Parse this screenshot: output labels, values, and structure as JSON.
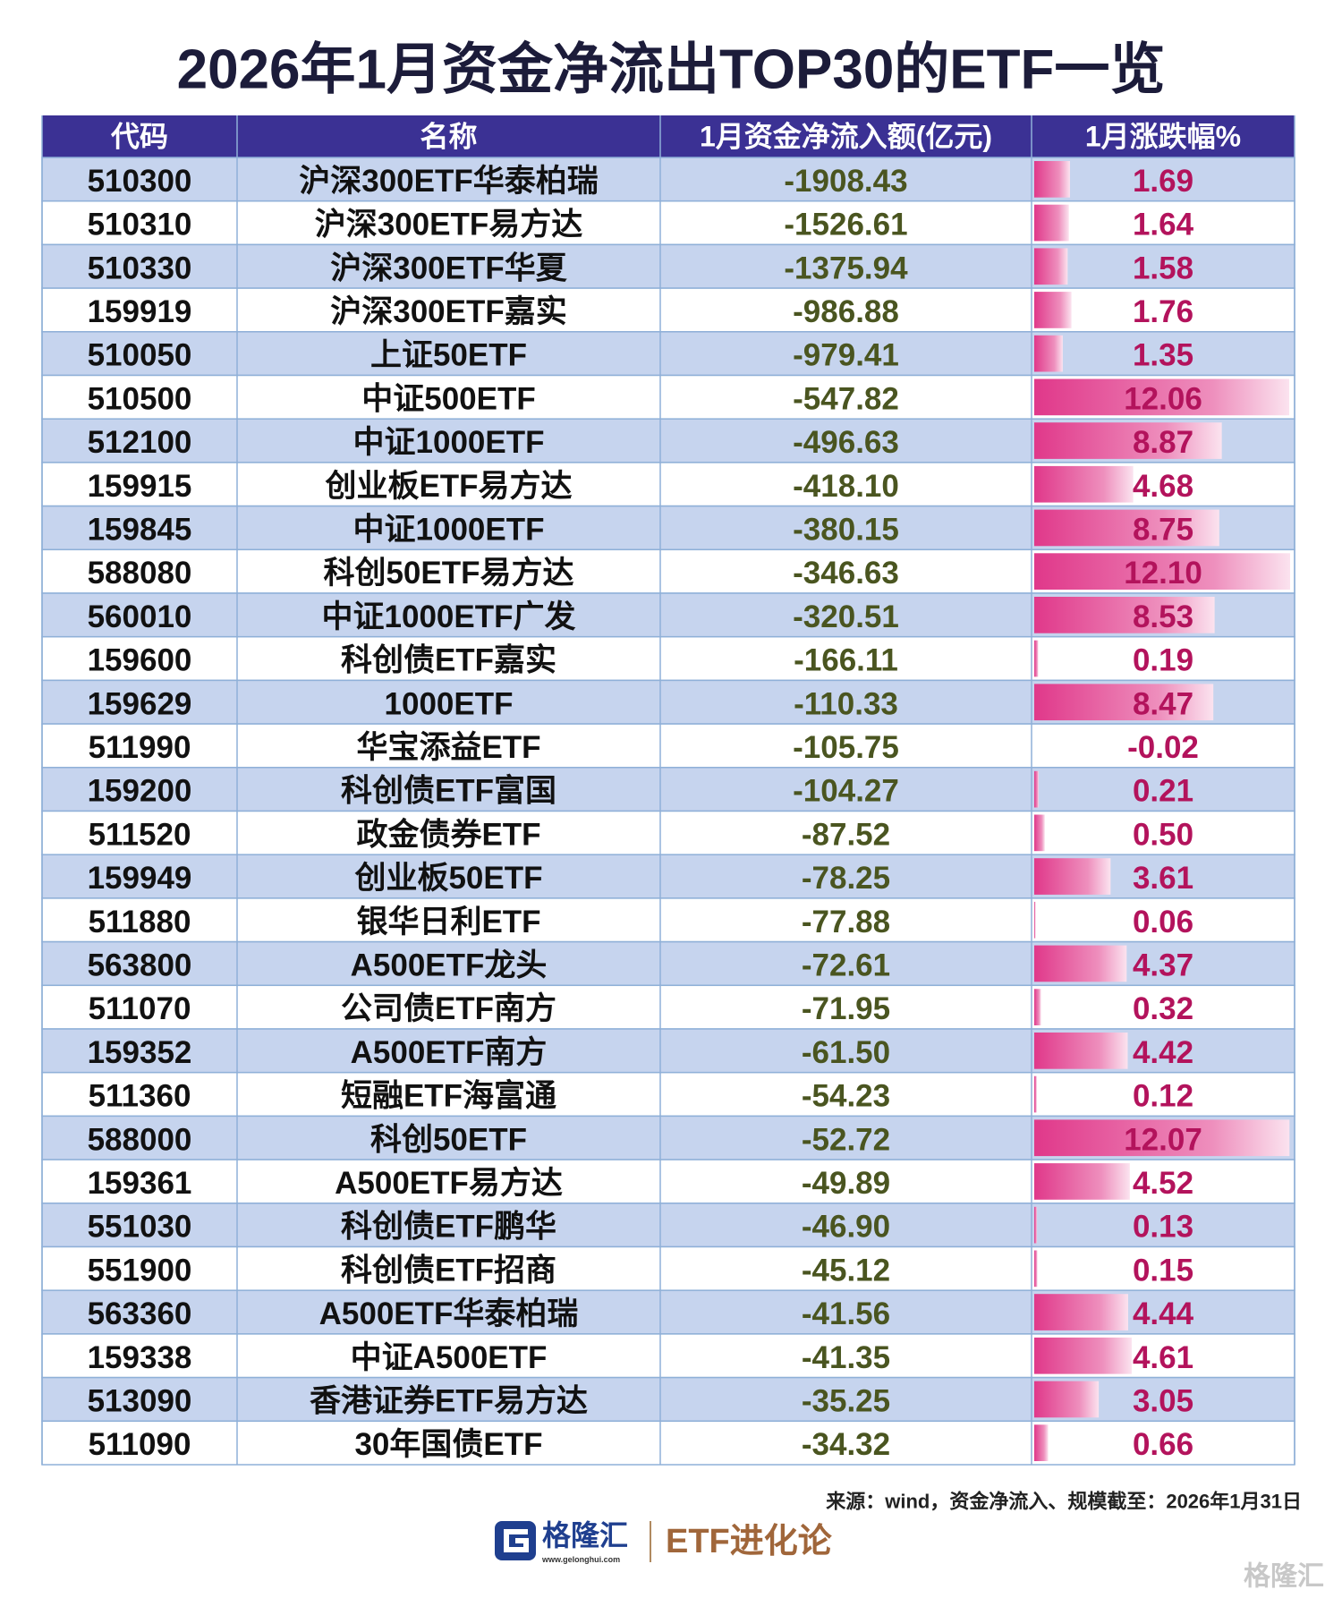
{
  "header": {
    "title": "2026年1月资金净流出TOP30的ETF一览"
  },
  "table": {
    "columns": [
      "代码",
      "名称",
      "1月资金净流入额(亿元)",
      "1月涨跌幅%"
    ],
    "rows": [
      [
        "510300",
        "沪深300ETF华泰柏瑞",
        "-1908.43",
        "1.69"
      ],
      [
        "510310",
        "沪深300ETF易方达",
        "-1526.61",
        "1.64"
      ],
      [
        "510330",
        "沪深300ETF华夏",
        "-1375.94",
        "1.58"
      ],
      [
        "159919",
        "沪深300ETF嘉实",
        "-986.88",
        "1.76"
      ],
      [
        "510050",
        "上证50ETF",
        "-979.41",
        "1.35"
      ],
      [
        "510500",
        "中证500ETF",
        "-547.82",
        "12.06"
      ],
      [
        "512100",
        "中证1000ETF",
        "-496.63",
        "8.87"
      ],
      [
        "159915",
        "创业板ETF易方达",
        "-418.10",
        "4.68"
      ],
      [
        "159845",
        "中证1000ETF",
        "-380.15",
        "8.75"
      ],
      [
        "588080",
        "科创50ETF易方达",
        "-346.63",
        "12.10"
      ],
      [
        "560010",
        "中证1000ETF广发",
        "-320.51",
        "8.53"
      ],
      [
        "159600",
        "科创债ETF嘉实",
        "-166.11",
        "0.19"
      ],
      [
        "159629",
        "1000ETF",
        "-110.33",
        "8.47"
      ],
      [
        "511990",
        "华宝添益ETF",
        "-105.75",
        "-0.02"
      ],
      [
        "159200",
        "科创债ETF富国",
        "-104.27",
        "0.21"
      ],
      [
        "511520",
        "政金债券ETF",
        "-87.52",
        "0.50"
      ],
      [
        "159949",
        "创业板50ETF",
        "-78.25",
        "3.61"
      ],
      [
        "511880",
        "银华日利ETF",
        "-77.88",
        "0.06"
      ],
      [
        "563800",
        "A500ETF龙头",
        "-72.61",
        "4.37"
      ],
      [
        "511070",
        "公司债ETF南方",
        "-71.95",
        "0.32"
      ],
      [
        "159352",
        "A500ETF南方",
        "-61.50",
        "4.42"
      ],
      [
        "511360",
        "短融ETF海富通",
        "-54.23",
        "0.12"
      ],
      [
        "588000",
        "科创50ETF",
        "-52.72",
        "12.07"
      ],
      [
        "159361",
        "A500ETF易方达",
        "-49.89",
        "4.52"
      ],
      [
        "551030",
        "科创债ETF鹏华",
        "-46.90",
        "0.13"
      ],
      [
        "551900",
        "科创债ETF招商",
        "-45.12",
        "0.15"
      ],
      [
        "563360",
        "A500ETF华泰柏瑞",
        "-41.56",
        "4.44"
      ],
      [
        "159338",
        "中证A500ETF",
        "-41.35",
        "4.61"
      ],
      [
        "513090",
        "香港证券ETF易方达",
        "-35.25",
        "3.05"
      ],
      [
        "511090",
        "30年国债ETF",
        "-34.32",
        "0.66"
      ]
    ]
  },
  "footer": {
    "source": "来源：wind，资金净流入、规模截至：2026年1月31日",
    "logo": "格隆汇",
    "logo_url": "www.gelonghui.com",
    "brand": "ETF进化论",
    "watermark": "格隆汇"
  }
}
